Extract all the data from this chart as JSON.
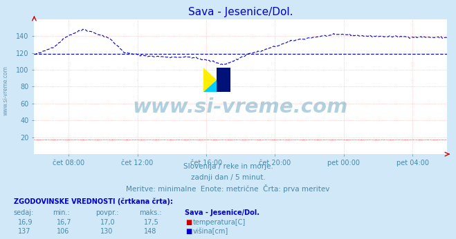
{
  "title": "Sava - Jesenice/Dol.",
  "title_color": "#0000cc",
  "bg_color": "#d0e8f8",
  "plot_bg_color": "#ffffff",
  "ylabel_color": "#4488aa",
  "xlabel_color": "#4488aa",
  "watermark_text": "www.si-vreme.com",
  "subtitle_lines": [
    "Slovenija / reke in morje.",
    "zadnji dan / 5 minut.",
    "Meritve: minimalne  Enote: metrične  Črta: prva meritev"
  ],
  "subtitle_color": "#4488aa",
  "legend_title": "ZGODOVINSKE VREDNOSTI (črtkana črta):",
  "legend_headers": [
    "sedaj:",
    "min.:",
    "povpr.:",
    "maks.:",
    "Sava - Jesenice/Dol."
  ],
  "legend_row1_vals": [
    "16,9",
    "16,7",
    "17,0",
    "17,5"
  ],
  "legend_row1_label": "temperatura[C]",
  "legend_row2_vals": [
    "137",
    "106",
    "130",
    "148"
  ],
  "legend_row2_label": "višina[cm]",
  "legend_color": "#4488aa",
  "legend_bold_color": "#0000cc",
  "yticks": [
    20,
    40,
    60,
    80,
    100,
    120,
    140
  ],
  "ylim": [
    0,
    160
  ],
  "xtick_labels": [
    "čet 08:00",
    "čet 12:00",
    "čet 16:00",
    "čet 20:00",
    "pet 00:00",
    "pet 04:00"
  ],
  "line_color": "#0000cc",
  "avg_line_value": 119,
  "n_points": 289,
  "sidebar_text": "www.si-vreme.com",
  "sidebar_color": "#6699bb"
}
